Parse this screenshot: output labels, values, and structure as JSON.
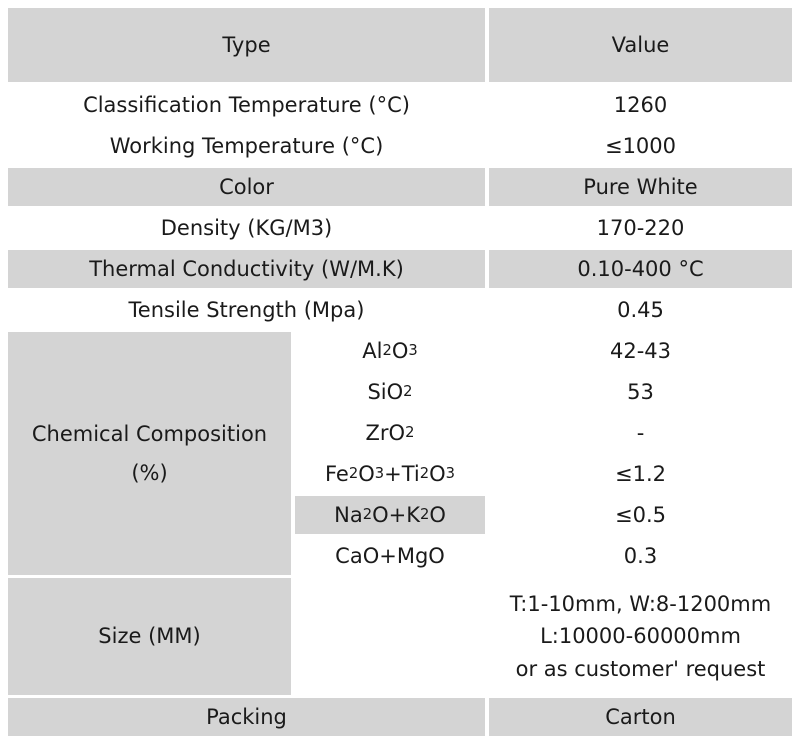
{
  "header": {
    "type": "Type",
    "value": "Value"
  },
  "rows": [
    {
      "type": "Classification Temperature (°C)",
      "value": "1260"
    },
    {
      "type": "Working Temperature (°C)",
      "value": "≤1000"
    },
    {
      "type": "Color",
      "value": "Pure White"
    },
    {
      "type": "Density (KG/M3)",
      "value": "170-220"
    },
    {
      "type": "Thermal Conductivity  (W/M.K)",
      "value": "0.10-400 °C"
    },
    {
      "type": "Tensile Strength (Mpa)",
      "value": "0.45"
    }
  ],
  "chemical": {
    "label_line1": "Chemical Composition",
    "label_line2": "(%)",
    "items": [
      {
        "formula": [
          [
            "Al",
            ""
          ],
          [
            "",
            "2"
          ],
          [
            "O",
            ""
          ],
          [
            "",
            "3"
          ]
        ],
        "value": "42-43"
      },
      {
        "formula": [
          [
            "SiO",
            ""
          ],
          [
            "",
            "2"
          ]
        ],
        "value": "53"
      },
      {
        "formula": [
          [
            "ZrO",
            ""
          ],
          [
            "",
            "2"
          ]
        ],
        "value": "-"
      },
      {
        "formula": [
          [
            "Fe",
            ""
          ],
          [
            "",
            "2"
          ],
          [
            "O",
            ""
          ],
          [
            "",
            "3"
          ],
          [
            "+Ti",
            ""
          ],
          [
            "",
            "2"
          ],
          [
            "O",
            ""
          ],
          [
            "",
            "3"
          ]
        ],
        "value": "≤1.2"
      },
      {
        "formula": [
          [
            "Na",
            ""
          ],
          [
            "",
            "2"
          ],
          [
            "O+K",
            ""
          ],
          [
            "",
            "2"
          ],
          [
            "O",
            ""
          ]
        ],
        "value": "≤0.5"
      },
      {
        "formula": [
          [
            "CaO+MgO",
            ""
          ]
        ],
        "value": "0.3"
      }
    ]
  },
  "size": {
    "label": "Size (MM)",
    "lines": [
      "T:1-10mm, W:8-1200mm",
      "L:10000-60000mm",
      "or as customer' request"
    ]
  },
  "packing": {
    "label": "Packing",
    "value": "Carton"
  }
}
